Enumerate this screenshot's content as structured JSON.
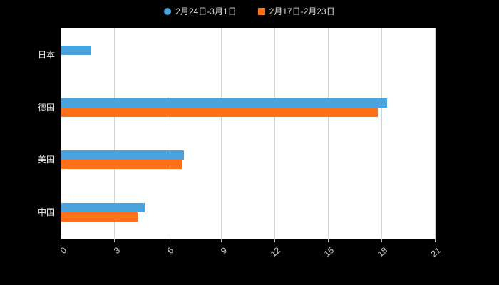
{
  "legend": {
    "items": [
      {
        "label": "2月24日-3月1日",
        "color": "#4aa3dd",
        "shape": "circle"
      },
      {
        "label": "2月17日-2月23日",
        "color": "#ff7119",
        "shape": "square"
      }
    ]
  },
  "chart_data": {
    "type": "bar",
    "orientation": "horizontal",
    "title": "",
    "xlabel": "",
    "ylabel": "",
    "categories": [
      "日本",
      "德国",
      "美国",
      "中国"
    ],
    "series": [
      {
        "name": "2月24日-3月1日",
        "color": "#4aa3dd",
        "values": [
          1.7,
          18.3,
          6.9,
          4.7
        ]
      },
      {
        "name": "2月17日-2月23日",
        "color": "#ff7119",
        "values": [
          0,
          17.8,
          6.8,
          4.3
        ]
      }
    ],
    "xlim": [
      0,
      21
    ],
    "xticks": [
      0,
      3,
      6,
      9,
      12,
      15,
      18,
      21
    ],
    "grid": true,
    "legend_position": "top",
    "background": "#000000",
    "plot_background": "#ffffff"
  }
}
